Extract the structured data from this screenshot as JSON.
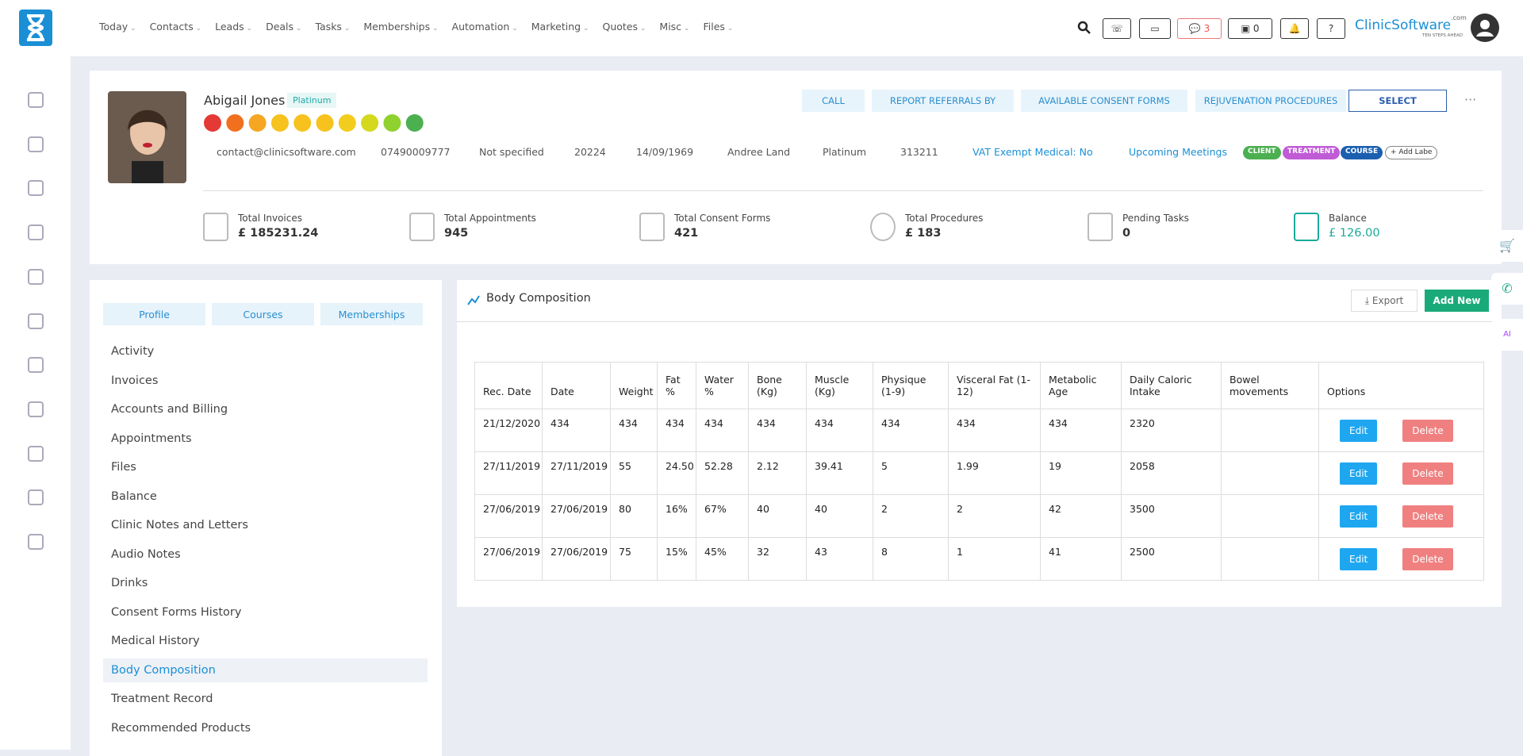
{
  "nav": {
    "items": [
      "Today",
      "Contacts",
      "Leads",
      "Deals",
      "Tasks",
      "Memberships",
      "Automation",
      "Marketing",
      "Quotes",
      "Misc",
      "Files"
    ],
    "messages_count": "3",
    "store_count": "0",
    "brand": "ClinicSoftware",
    "brand_suffix": ".com",
    "brand_tagline": "TEN STEPS AHEAD"
  },
  "client": {
    "name": "Abigail Jones",
    "tier": "Platinum",
    "actions": [
      "CALL",
      "REPORT REFERRALS BY",
      "AVAILABLE CONSENT FORMS",
      "REJUVENATION PROCEDURES",
      "SELECT"
    ],
    "details": [
      "contact@clinicsoftware.com",
      "07490009777",
      "Not specified",
      "20224",
      "14/09/1969",
      "Andree Land",
      "Platinum",
      "313211",
      "VAT Exempt Medical: No",
      "Upcoming Meetings"
    ],
    "labels": [
      "CLIENT",
      "TREATMENT",
      "COURSE",
      "+ Add Labe"
    ]
  },
  "stats": [
    {
      "label": "Total Invoices",
      "value": "£ 185231.24"
    },
    {
      "label": "Total Appointments",
      "value": "945"
    },
    {
      "label": "Total Consent Forms",
      "value": "421"
    },
    {
      "label": "Total Procedures",
      "value": "£ 183"
    },
    {
      "label": "Pending Tasks",
      "value": "0"
    },
    {
      "label": "Balance",
      "value": "£ 126.00"
    }
  ],
  "tabs": [
    "Profile",
    "Courses",
    "Memberships"
  ],
  "menu": [
    "Activity",
    "Invoices",
    "Accounts and Billing",
    "Appointments",
    "Files",
    "Balance",
    "Clinic Notes and Letters",
    "Audio Notes",
    "Drinks",
    "Consent Forms History",
    "Medical History",
    "Body Composition",
    "Treatment Record",
    "Recommended Products"
  ],
  "panel": {
    "title": "Body Composition",
    "export": "Export",
    "add_new": "Add New"
  },
  "table": {
    "headers": [
      "Rec. Date",
      "Date",
      "Weight",
      "Fat %",
      "Water %",
      "Bone (Kg)",
      "Muscle (Kg)",
      "Physique (1-9)",
      "Visceral Fat (1-12)",
      "Metabolic Age",
      "Daily Caloric Intake",
      "Bowel movements",
      "Options"
    ],
    "rows": [
      [
        "21/12/2020",
        "434",
        "434",
        "434",
        "434",
        "434",
        "434",
        "434",
        "434",
        "434",
        "2320",
        ""
      ],
      [
        "27/11/2019",
        "27/11/2019",
        "55",
        "24.50",
        "52.28",
        "2.12",
        "39.41",
        "5",
        "1.99",
        "19",
        "2058",
        ""
      ],
      [
        "27/06/2019",
        "27/06/2019",
        "80",
        "16%",
        "67%",
        "40",
        "40",
        "2",
        "2",
        "42",
        "3500",
        ""
      ],
      [
        "27/06/2019",
        "27/06/2019",
        "75",
        "15%",
        "45%",
        "32",
        "43",
        "8",
        "1",
        "41",
        "2500",
        ""
      ]
    ],
    "edit": "Edit",
    "delete": "Delete"
  }
}
